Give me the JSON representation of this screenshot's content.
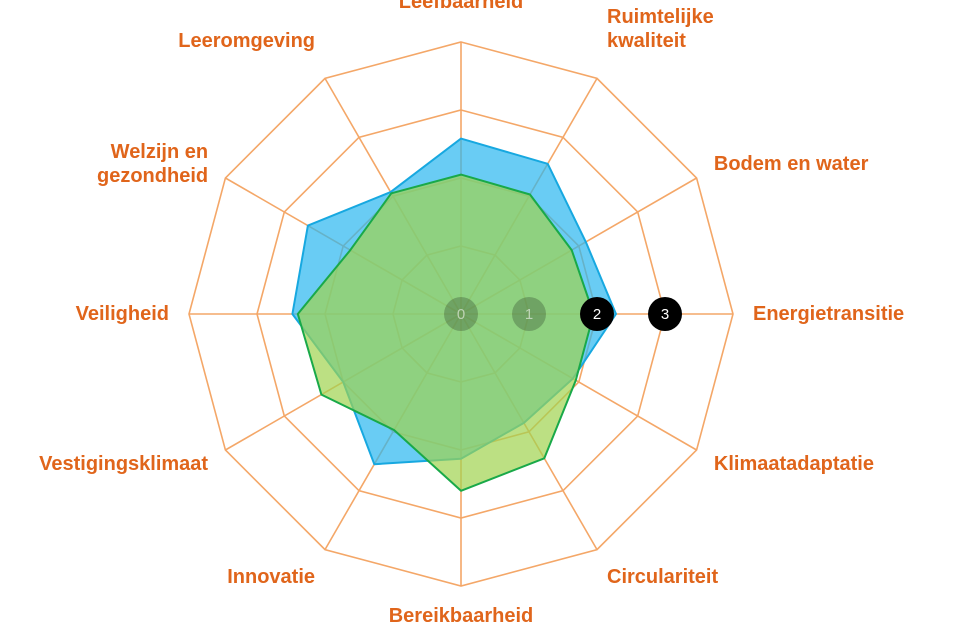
{
  "chart_data": {
    "type": "radar",
    "title": "",
    "axes": [
      {
        "label": [
          "Leefbaarheid"
        ]
      },
      {
        "label": [
          "Ruimtelijke",
          "kwaliteit"
        ]
      },
      {
        "label": [
          "Bodem en water"
        ]
      },
      {
        "label": [
          "Energietransitie"
        ]
      },
      {
        "label": [
          "Klimaatadaptatie"
        ]
      },
      {
        "label": [
          "Circulariteit"
        ]
      },
      {
        "label": [
          "Bereikbaarheid"
        ]
      },
      {
        "label": [
          "Innovatie"
        ]
      },
      {
        "label": [
          "Vestigingsklimaat"
        ]
      },
      {
        "label": [
          "Veiligheid"
        ]
      },
      {
        "label": [
          "Welzijn en",
          "gezondheid"
        ]
      },
      {
        "label": [
          "Leeromgeving"
        ]
      }
    ],
    "range": [
      0,
      4
    ],
    "ticks": [
      {
        "value": 0,
        "label": "0"
      },
      {
        "value": 1,
        "label": "1"
      },
      {
        "value": 2,
        "label": "2"
      },
      {
        "value": 3,
        "label": "3"
      }
    ],
    "series": [
      {
        "values": [
          2.58,
          2.55,
          2.12,
          2.28,
          1.9,
          1.85,
          2.13,
          2.55,
          2.0,
          2.48,
          2.6,
          2.07
        ],
        "fill": "#2ab6ef",
        "stroke": "#17a8e0"
      },
      {
        "values": [
          2.05,
          2.03,
          1.88,
          1.95,
          1.95,
          2.45,
          2.6,
          1.97,
          2.37,
          2.4,
          1.88,
          2.05
        ],
        "fill": "#9fd34f",
        "stroke": "#19a949"
      }
    ],
    "colors": {
      "grid": "#f4a768",
      "label": "#e0651b",
      "tick_marker": "#000000"
    }
  }
}
